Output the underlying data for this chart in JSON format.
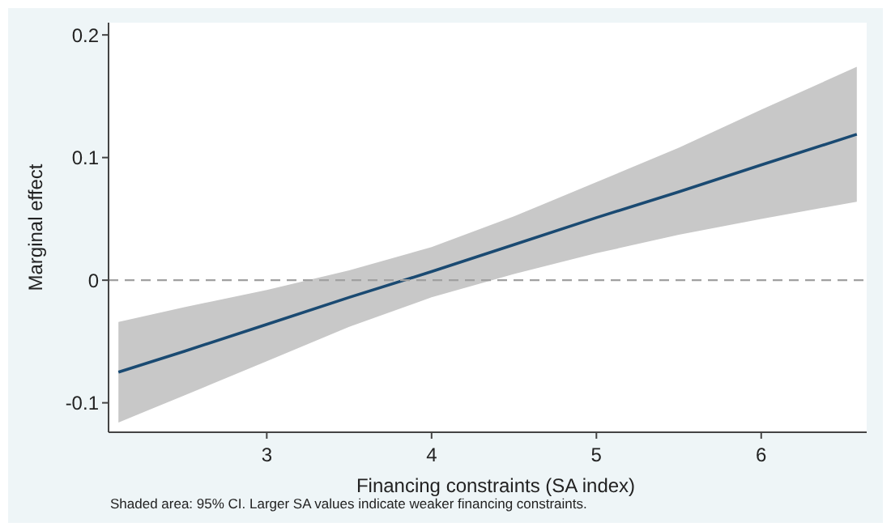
{
  "chart_data": {
    "type": "line",
    "xlabel": "Financing constraints (SA index)",
    "ylabel": "Marginal effect",
    "annotations": [
      "Shaded area: 95% CI. Larger SA values indicate weaker financing constraints."
    ],
    "x": [
      2.1,
      2.5,
      3,
      3.5,
      4,
      4.5,
      5,
      5.5,
      6,
      6.58
    ],
    "series": [
      {
        "color": "#1a4a72",
        "values": [
          -0.075,
          -0.058,
          -0.036,
          -0.014,
          0.007,
          0.029,
          0.051,
          0.072,
          0.094,
          0.119
        ],
        "lower": [
          -0.116,
          -0.094,
          -0.066,
          -0.038,
          -0.014,
          0.005,
          0.022,
          0.037,
          0.05,
          0.064
        ],
        "upper": [
          -0.034,
          -0.022,
          -0.008,
          0.008,
          0.027,
          0.052,
          0.08,
          0.108,
          0.139,
          0.174
        ]
      }
    ],
    "xlim": [
      2.04,
      6.64
    ],
    "ylim": [
      -0.124,
      0.21
    ],
    "xticks": [
      3,
      4,
      5,
      6
    ],
    "yticks": [
      -0.1,
      0,
      0.1,
      0.2
    ],
    "ref_lines": [
      {
        "axis": "y",
        "value": 0,
        "color": "#a0a0a0",
        "line_style": "dashed"
      }
    ],
    "grid": false,
    "line_style": "solid",
    "marker": "none"
  }
}
